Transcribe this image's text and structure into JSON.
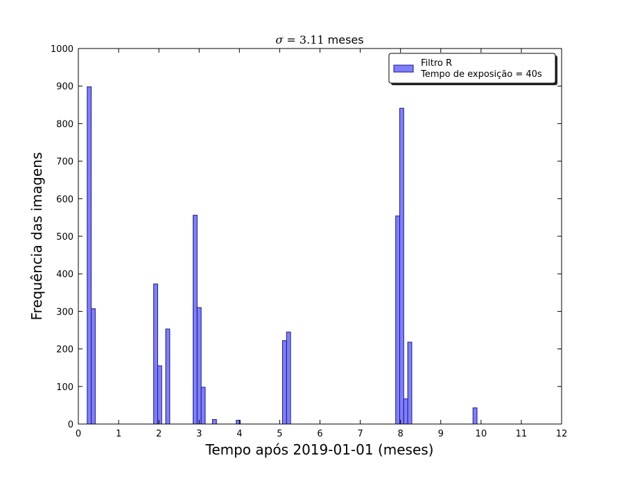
{
  "chart_data": {
    "type": "bar",
    "title": {
      "math_symbol": "σ",
      "math_op": " = ",
      "math_value": "3.11",
      "text": " meses"
    },
    "xlabel": "Tempo após 2019-01-01 (meses)",
    "ylabel": "Frequência das imagens",
    "xlim": [
      0,
      12
    ],
    "ylim": [
      0,
      1000
    ],
    "xticks": [
      "0",
      "1",
      "2",
      "3",
      "4",
      "5",
      "6",
      "7",
      "8",
      "9",
      "10",
      "11",
      "12"
    ],
    "yticks": [
      "0",
      "100",
      "200",
      "300",
      "400",
      "500",
      "600",
      "700",
      "800",
      "900",
      "1000"
    ],
    "grid": false,
    "legend": {
      "placement": "top-right",
      "entries": [
        "Filtro R",
        "Tempo de exposição = 40s"
      ]
    },
    "bar_color": "#7f7fff",
    "bar_edge_color": "#1a1a80",
    "bar_width": 0.1,
    "series": [
      {
        "x": [
          0.27,
          0.37,
          1.92,
          2.02,
          2.22,
          2.9,
          3.0,
          3.1,
          3.38,
          3.97,
          5.12,
          5.22,
          7.93,
          8.03,
          8.13,
          8.23,
          9.85
        ],
        "values": [
          898,
          307,
          373,
          155,
          253,
          556,
          310,
          98,
          12,
          10,
          222,
          245,
          554,
          841,
          67,
          218,
          43
        ]
      }
    ]
  }
}
